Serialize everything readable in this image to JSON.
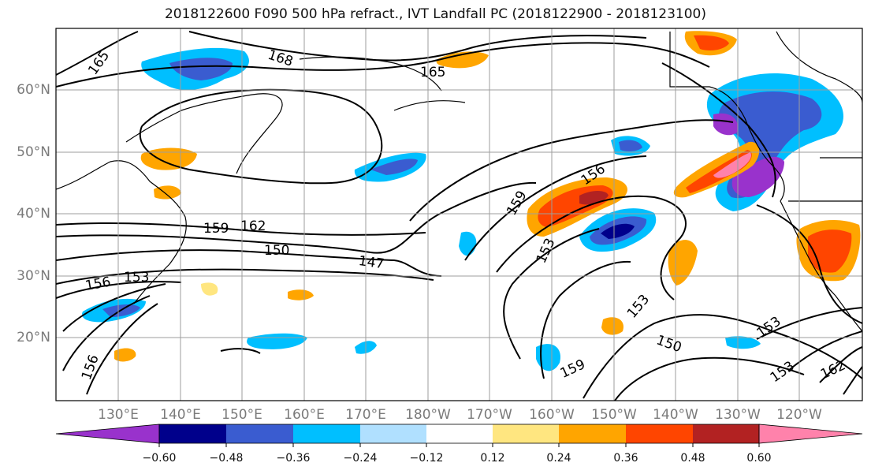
{
  "title": "2018122600 F090 500 hPa refract., IVT Landfall PC (2018122900 - 2018123100)",
  "lat_labels": [
    "60°N",
    "50°N",
    "40°N",
    "30°N",
    "20°N"
  ],
  "lon_labels": [
    "130°E",
    "140°E",
    "150°E",
    "160°E",
    "170°E",
    "180°W",
    "170°W",
    "160°W",
    "150°W",
    "140°W",
    "130°W",
    "120°W"
  ],
  "contour_labels": [
    "168",
    "165",
    "165",
    "162",
    "159",
    "156",
    "153",
    "150",
    "147",
    "159",
    "156",
    "153",
    "153",
    "150",
    "153",
    "159",
    "162",
    "156",
    "153"
  ],
  "colorbar": {
    "tick_labels": [
      "−0.60",
      "−0.48",
      "−0.36",
      "−0.24",
      "−0.12",
      "0.12",
      "0.24",
      "0.36",
      "0.48",
      "0.60"
    ],
    "colors": [
      "#9932cc",
      "#00008b",
      "#3a5cd0",
      "#00bfff",
      "#b0e0ff",
      "#ffffff",
      "#ffe680",
      "#ffa500",
      "#ff4500",
      "#b22222",
      "#ff82ab"
    ]
  }
}
